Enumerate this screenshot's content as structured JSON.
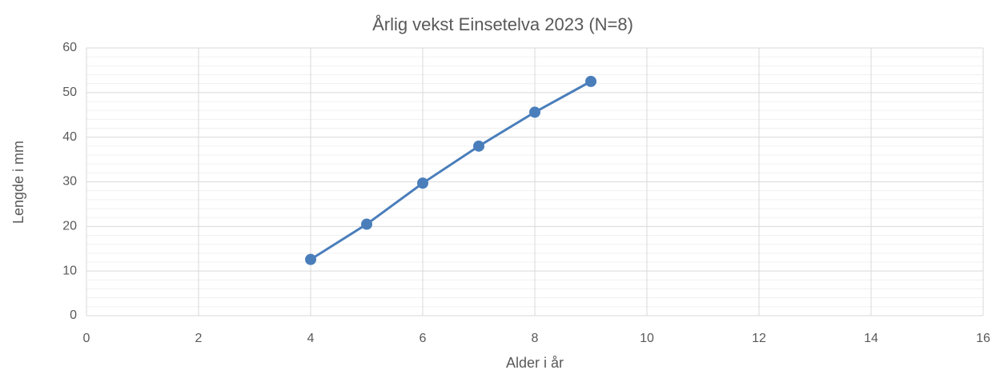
{
  "chart_data": {
    "type": "line",
    "title": "Årlig vekst Einsetelva 2023 (N=8)",
    "x_label": "Alder i år",
    "y_label": "Lengde i mm",
    "series": [
      {
        "x": [
          4,
          5,
          6,
          7,
          8,
          9
        ],
        "values": [
          12.6,
          20.5,
          29.7,
          38,
          45.6,
          52.5
        ],
        "color": "#4a7ebb"
      }
    ],
    "xlim": [
      0,
      16
    ],
    "xticks": [
      0,
      2,
      4,
      6,
      8,
      10,
      12,
      14,
      16
    ],
    "ylim": [
      0,
      60
    ],
    "yticks": [
      0,
      10,
      20,
      30,
      40,
      50,
      60
    ],
    "grid": true,
    "minor_grid": true
  }
}
